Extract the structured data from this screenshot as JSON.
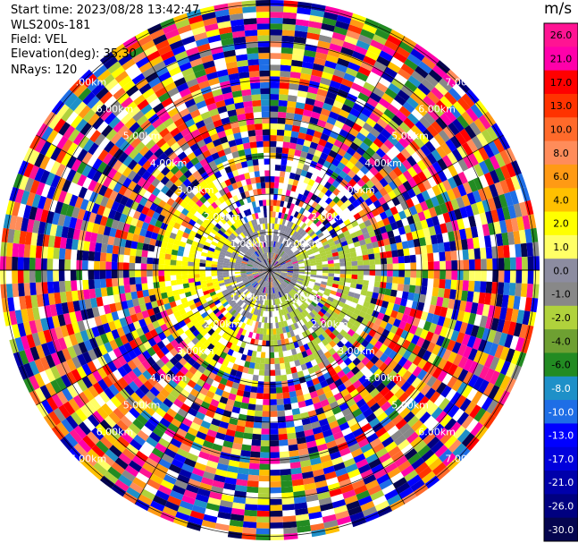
{
  "header": {
    "start_time": "Start time: 2023/08/28 13:42:47",
    "site": "WLS200s-181",
    "field": "Field: VEL",
    "elevation": "Elevation(deg): 35.30",
    "nrays": "NRays: 120"
  },
  "chart_data": {
    "type": "heatmap",
    "subtype": "ppi-polar",
    "field": "VEL",
    "elevation_deg": 35.3,
    "n_rays": 120,
    "units": "m/s",
    "range_ring_labels": [
      "1.00km",
      "2.00km",
      "3.00km",
      "4.00km",
      "5.00km",
      "6.00km",
      "7.00km"
    ],
    "ring_label_angles_deg": [
      45,
      135,
      225,
      315
    ],
    "colorbar": {
      "unit": "m/s",
      "ticks": [
        26.0,
        21.0,
        17.0,
        13.0,
        10.0,
        8.0,
        6.0,
        4.0,
        2.0,
        1.0,
        0.0,
        -1.0,
        -2.0,
        -4.0,
        -6.0,
        -8.0,
        -10.0,
        -13.0,
        -17.0,
        -21.0,
        -26.0,
        -30.0
      ],
      "tick_labels": [
        "26.0",
        "21.0",
        "17.0",
        "13.0",
        "10.0",
        "8.0",
        "6.0",
        "4.0",
        "2.0",
        "1.0",
        "0.0",
        "-1.0",
        "-2.0",
        "-4.0",
        "-6.0",
        "-8.0",
        "-10.0",
        "-13.0",
        "-17.0",
        "-21.0",
        "-26.0",
        "-30.0"
      ],
      "colors": [
        "#ff1493",
        "#ff00aa",
        "#ff0000",
        "#ff3300",
        "#ff6a2a",
        "#ff8c5a",
        "#ff9a14",
        "#ffc000",
        "#ffff00",
        "#ffff66",
        "#8c8ca0",
        "#888888",
        "#b0d23c",
        "#6ea032",
        "#228b22",
        "#1e90c8",
        "#1e6ee6",
        "#0000ff",
        "#0000dc",
        "#0000aa",
        "#000080",
        "#05054f"
      ]
    },
    "pattern": {
      "inner_gray_fraction": 0.12,
      "yellow_band_fraction": 0.3,
      "green_sector_deg": [
        0,
        200
      ]
    }
  }
}
